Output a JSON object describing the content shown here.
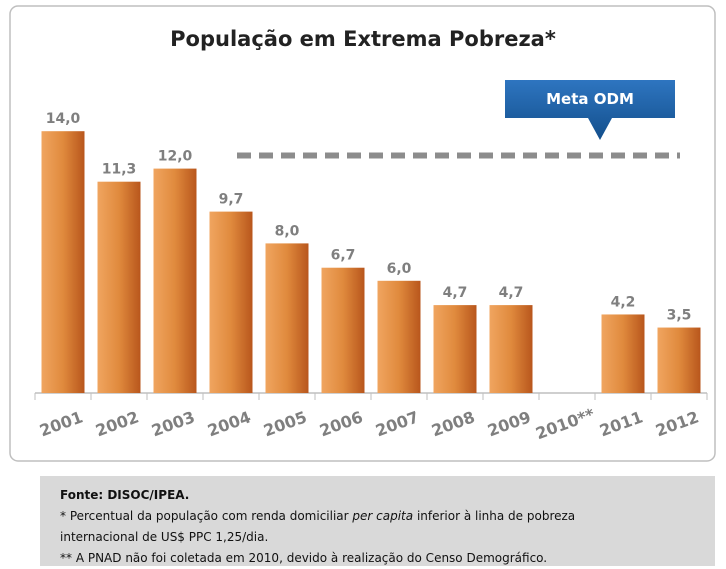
{
  "chart_data": {
    "type": "bar",
    "title": "População em Extrema Pobreza*",
    "categories": [
      "2001",
      "2002",
      "2003",
      "2004",
      "2005",
      "2006",
      "2007",
      "2008",
      "2009",
      "2010**",
      "2011",
      "2012"
    ],
    "values": [
      14.0,
      11.3,
      12.0,
      9.7,
      8.0,
      6.7,
      6.0,
      4.7,
      4.7,
      null,
      4.2,
      3.5
    ],
    "value_labels": [
      "14,0",
      "11,3",
      "12,0",
      "9,7",
      "8,0",
      "6,7",
      "6,0",
      "4,7",
      "4,7",
      null,
      "4,2",
      "3,5"
    ],
    "color": "#d9782f",
    "target": {
      "label": "Meta ODM",
      "value": 12.7,
      "color": "#8c8c8c"
    }
  },
  "footer": {
    "source": "Fonte: DISOC/IPEA.",
    "note1": {
      "before": "* Percentual da população com renda domiciliar ",
      "italic": "per capita",
      "after": " inferior à linha de pobreza"
    },
    "note1_cont": "internacional de US$ PPC 1,25/dia.",
    "note2": "** A PNAD não foi coletada em 2010, devido à realização do Censo Demográfico."
  }
}
